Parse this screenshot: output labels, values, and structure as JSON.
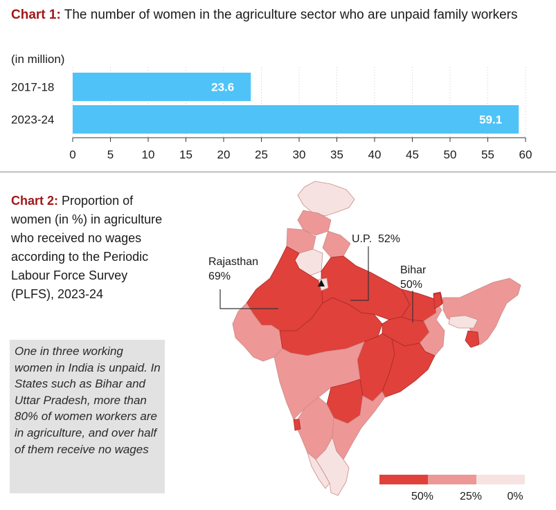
{
  "chart1": {
    "label": "Chart 1:",
    "title": "The number of women in the agriculture sector who are unpaid family workers",
    "unit": "(in million)"
  },
  "chart2": {
    "label": "Chart 2:",
    "title": "Proportion of women (in %) in agriculture who received no wages according to the Periodic Labour Force Survey (PLFS), 2023-24",
    "note": "One in three working women in India is unpaid. In States such as Bihar and Uttar Pradesh, more than 80% of women workers are in agriculture, and over half of them receive no wages",
    "annotations": [
      {
        "state": "Rajasthan",
        "value": "69%"
      },
      {
        "state": "U.P.",
        "value": "52%"
      },
      {
        "state": "Bihar",
        "value": "50%"
      }
    ],
    "legend": {
      "labels": [
        "50%",
        "25%",
        "0%"
      ],
      "colors": [
        "#e0413b",
        "#ee9797",
        "#f6e3e1"
      ]
    }
  },
  "colors": {
    "bar": "#4fc3f7",
    "chart_label": "#a01818",
    "map_high": "#e0413b",
    "map_mid": "#ee9797",
    "map_low": "#f6e3e1"
  },
  "chart_data": [
    {
      "type": "bar",
      "orientation": "horizontal",
      "categories": [
        "2017-18",
        "2023-24"
      ],
      "values": [
        23.6,
        59.1
      ],
      "data_labels": [
        "23.6",
        "59.1"
      ],
      "xlim": [
        0,
        60
      ],
      "xticks": [
        0,
        5,
        10,
        15,
        20,
        25,
        30,
        35,
        40,
        45,
        50,
        55,
        60
      ],
      "ylabel": "(in million)",
      "grid": "vertical dotted"
    },
    {
      "type": "choropleth",
      "highlighted": [
        {
          "state": "Rajasthan",
          "value": 69
        },
        {
          "state": "U.P.",
          "value": 52
        },
        {
          "state": "Bihar",
          "value": 50
        }
      ],
      "scale": [
        50,
        25,
        0
      ]
    }
  ]
}
